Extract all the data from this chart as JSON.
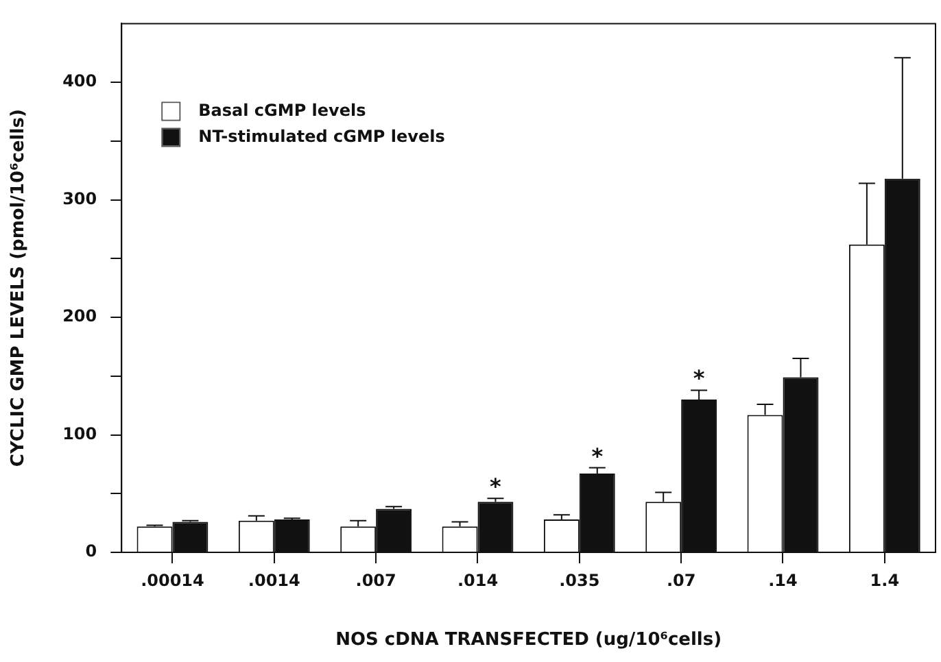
{
  "chart_data": {
    "type": "bar",
    "xlabel": "NOS cDNA TRANSFECTED (ug/10⁶cells)",
    "ylabel": "CYCLIC GMP LEVELS (pmol/10⁶cells)",
    "categories": [
      ".00014",
      ".0014",
      ".007",
      ".014",
      ".035",
      ".07",
      ".14",
      "1.4"
    ],
    "series": [
      {
        "name": "Basal cGMP levels",
        "color": "#ffffff",
        "values": [
          22,
          27,
          22,
          22,
          28,
          43,
          117,
          262
        ],
        "errors": [
          [
            22,
            23
          ],
          [
            27,
            31
          ],
          [
            22,
            27
          ],
          [
            22,
            26
          ],
          [
            28,
            32
          ],
          [
            43,
            51
          ],
          [
            117,
            126
          ],
          [
            262,
            314
          ]
        ]
      },
      {
        "name": "NT-stimulated cGMP levels",
        "color": "#111111",
        "values": [
          26,
          28,
          37,
          43,
          67,
          130,
          149,
          318
        ],
        "errors": [
          [
            26,
            27
          ],
          [
            28,
            29
          ],
          [
            37,
            39
          ],
          [
            43,
            46
          ],
          [
            67,
            72
          ],
          [
            130,
            138
          ],
          [
            149,
            165
          ],
          [
            318,
            421
          ]
        ]
      }
    ],
    "ylim": [
      0,
      450
    ],
    "yticks": [
      0,
      {
        "value": 50,
        "label": null
      },
      100,
      {
        "value": 150,
        "label": null
      },
      200,
      {
        "value": 250,
        "label": null
      },
      300,
      {
        "value": 350,
        "label": null
      },
      400
    ],
    "annotations": [
      {
        "text": "*",
        "x": ".014",
        "y": 43
      },
      {
        "text": "*",
        "x": ".035",
        "y": 67
      },
      {
        "text": "*",
        "x": ".07",
        "y": 130
      }
    ],
    "legend": "top left",
    "grid": false
  }
}
